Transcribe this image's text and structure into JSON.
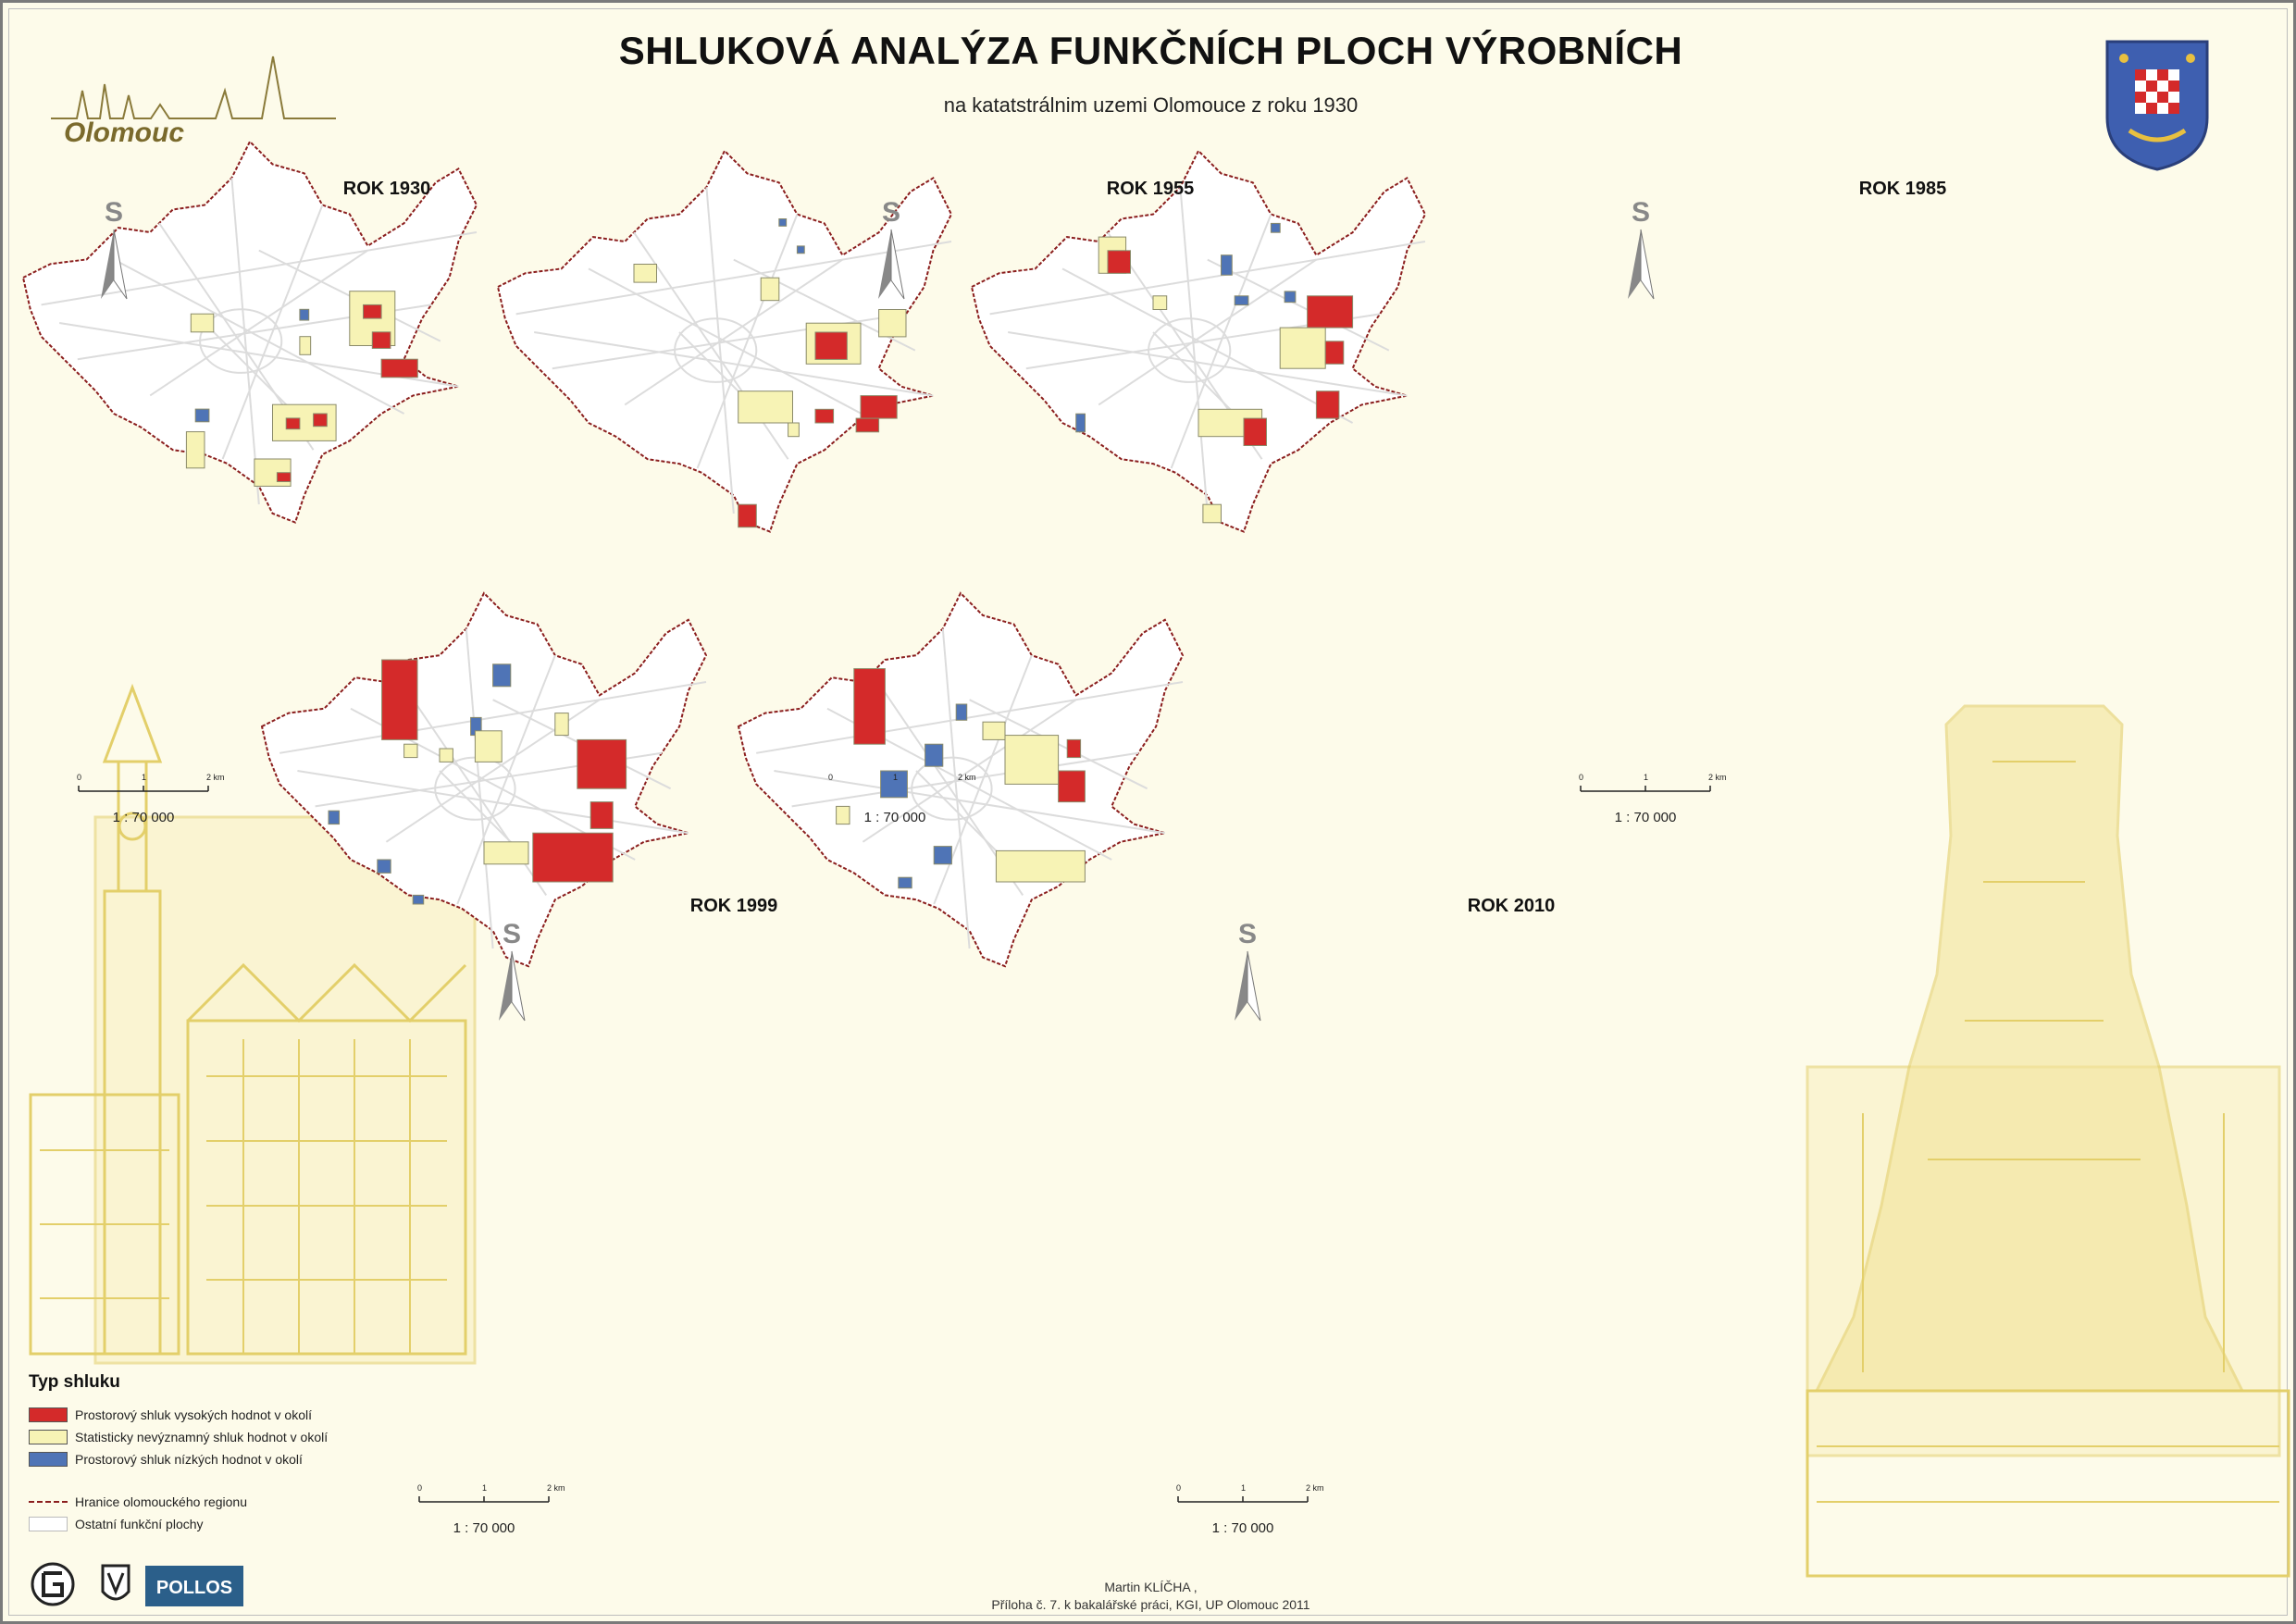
{
  "header": {
    "title": "SHLUKOVÁ ANALÝZA FUNKČNÍCH PLOCH VÝROBNÍCH",
    "subtitle": "na katatstrálnim uzemi Olomouce z roku 1930",
    "logo_text": "Olomouc"
  },
  "maps": [
    {
      "title": "ROK 1930",
      "scale": "1 : 70 000",
      "north": "S"
    },
    {
      "title": "ROK 1955",
      "scale": "1 : 70 000",
      "north": "S"
    },
    {
      "title": "ROK 1985",
      "scale": "1 : 70 000",
      "north": "S"
    },
    {
      "title": "ROK 1999",
      "scale": "1 : 70 000",
      "north": "S"
    },
    {
      "title": "ROK 2010",
      "scale": "1 : 70 000",
      "north": "S"
    }
  ],
  "scale_ticks": [
    "0",
    "1",
    "2 km"
  ],
  "legend": {
    "title": "Typ shluku",
    "items": [
      {
        "label": "Prostorový shluk vysokých hodnot v okolí",
        "color": "#d42a2a"
      },
      {
        "label": "Statisticky nevýznamný shluk hodnot v okolí",
        "color": "#f7f3b5"
      },
      {
        "label": "Prostorový shluk nízkých hodnot v okolí",
        "color": "#4f74b6"
      }
    ],
    "border_label": "Hranice olomouckého regionu",
    "other_label": "Ostatní funkční plochy"
  },
  "footer": {
    "author": "Martin KLÍČHA ,",
    "note": "Příloha č. 7. k bakalářské práci, KGI, UP Olomouc 2011"
  },
  "colors": {
    "high": "#d42a2a",
    "neutral": "#f7f3b5",
    "low": "#4f74b6",
    "border": "#8b1e1e",
    "roads": "#dcdcdc",
    "background": "#fdfbea",
    "ochre": "#e8d88a"
  }
}
